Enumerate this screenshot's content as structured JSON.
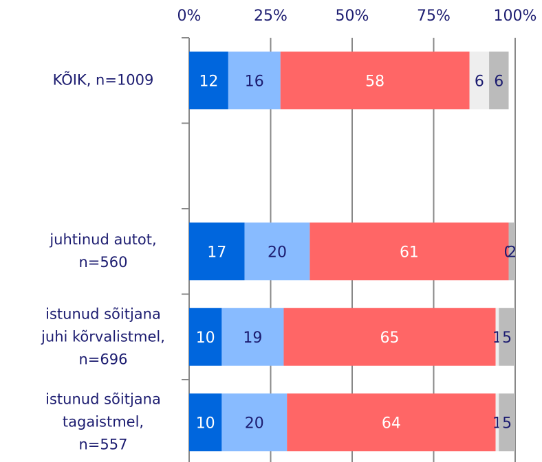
{
  "chart_data": {
    "type": "stacked_bar_horizontal",
    "categories": [
      "KÕIK, n=1009",
      null,
      "juhtinud autot,\nn=560",
      "istunud sõitjana\njuhi kõrvalistmel,\nn=696",
      "istunud sõitjana\ntagaistmel,\nn=557"
    ],
    "series": [
      {
        "color": "#0066dd",
        "values": [
          12,
          null,
          17,
          10,
          10
        ]
      },
      {
        "color": "#88bbff",
        "values": [
          16,
          null,
          20,
          19,
          20
        ]
      },
      {
        "color": "#ff6666",
        "values": [
          58,
          null,
          61,
          65,
          64
        ]
      },
      {
        "color": "#eeeeee",
        "values": [
          6,
          null,
          0,
          1,
          1
        ]
      },
      {
        "color": "#bbbbbb",
        "values": [
          6,
          null,
          2,
          5,
          5
        ]
      }
    ],
    "xlim": [
      0,
      100
    ],
    "xticks": [
      {
        "value": 0,
        "label": "0%"
      },
      {
        "value": 25,
        "label": "25%"
      },
      {
        "value": 50,
        "label": "50%"
      },
      {
        "value": 75,
        "label": "75%"
      },
      {
        "value": 100,
        "label": "100%"
      }
    ],
    "grid": true
  }
}
